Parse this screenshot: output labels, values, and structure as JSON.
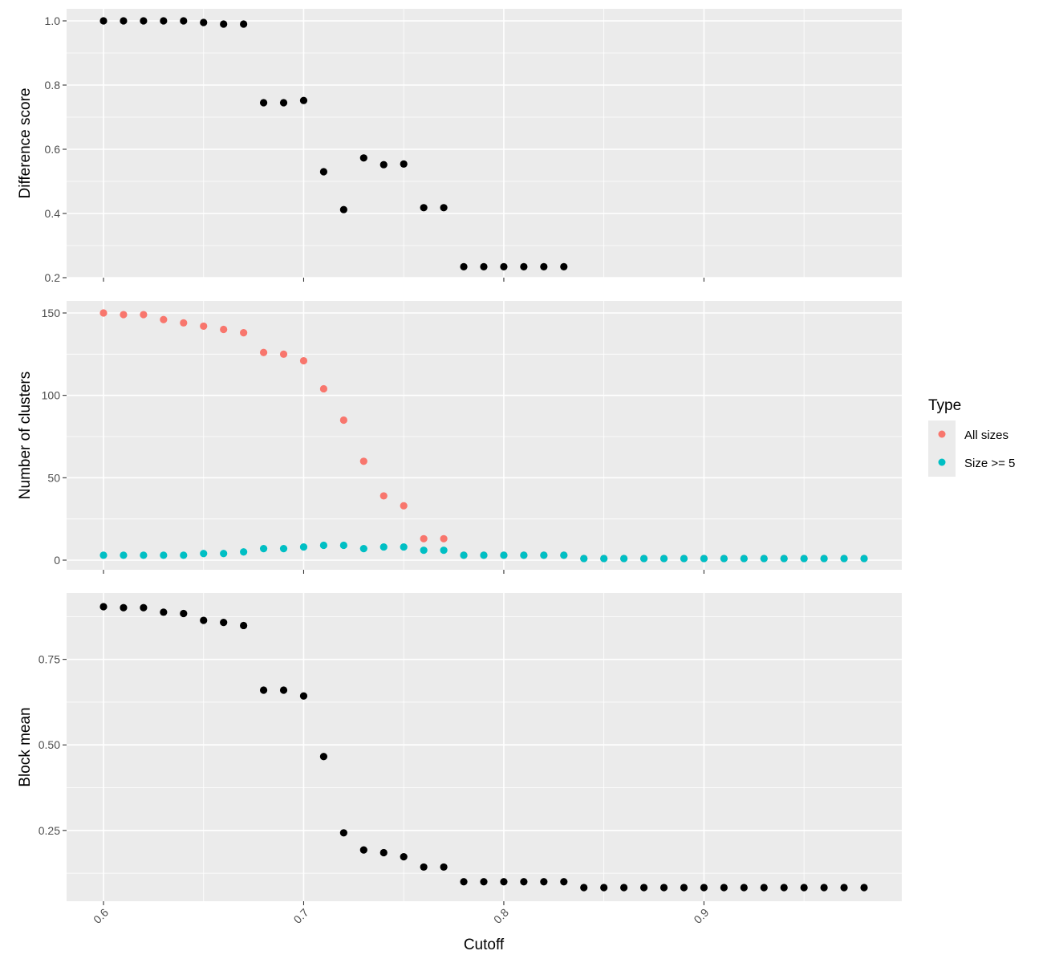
{
  "chart_data": [
    {
      "type": "scatter",
      "ylabel": "Difference score",
      "ylim": [
        0.2,
        1.0
      ],
      "yticks": [
        0.2,
        0.4,
        0.6,
        0.8,
        1.0
      ],
      "ytick_labels": [
        "0.2",
        "0.4",
        "0.6",
        "0.8",
        "1.0"
      ],
      "series": [
        {
          "color": "#000000",
          "x": [
            0.6,
            0.61,
            0.62,
            0.63,
            0.64,
            0.65,
            0.66,
            0.67,
            0.68,
            0.69,
            0.7,
            0.71,
            0.72,
            0.73,
            0.74,
            0.75,
            0.76,
            0.77,
            0.78,
            0.79,
            0.8,
            0.81,
            0.82,
            0.83
          ],
          "y": [
            1.0,
            1.0,
            1.0,
            1.0,
            1.0,
            0.995,
            0.99,
            0.99,
            0.745,
            0.745,
            0.752,
            0.53,
            0.412,
            0.573,
            0.552,
            0.554,
            0.418,
            0.418,
            0.234,
            0.234,
            0.234,
            0.234,
            0.234,
            0.234
          ]
        }
      ]
    },
    {
      "type": "scatter",
      "ylabel": "Number of clusters",
      "ylim": [
        0,
        150
      ],
      "yticks": [
        0,
        50,
        100,
        150
      ],
      "ytick_labels": [
        "0",
        "50",
        "100",
        "150"
      ],
      "legend": {
        "title": "Type",
        "position": "right"
      },
      "series": [
        {
          "name": "All sizes",
          "color": "#F8766D",
          "x": [
            0.6,
            0.61,
            0.62,
            0.63,
            0.64,
            0.65,
            0.66,
            0.67,
            0.68,
            0.69,
            0.7,
            0.71,
            0.72,
            0.73,
            0.74,
            0.75,
            0.76,
            0.77,
            0.78,
            0.79,
            0.8,
            0.81,
            0.82,
            0.83,
            0.84,
            0.85,
            0.86,
            0.87,
            0.88,
            0.89,
            0.9,
            0.91,
            0.92,
            0.93,
            0.94,
            0.95,
            0.96,
            0.97,
            0.98
          ],
          "y": [
            150,
            149,
            149,
            146,
            144,
            142,
            140,
            138,
            126,
            125,
            121,
            104,
            85,
            60,
            39,
            33,
            13,
            13,
            3,
            3,
            3,
            3,
            3,
            3,
            1,
            1,
            1,
            1,
            1,
            1,
            1,
            1,
            1,
            1,
            1,
            1,
            1,
            1,
            1
          ]
        },
        {
          "name": "Size >= 5",
          "color": "#00BFC4",
          "x": [
            0.6,
            0.61,
            0.62,
            0.63,
            0.64,
            0.65,
            0.66,
            0.67,
            0.68,
            0.69,
            0.7,
            0.71,
            0.72,
            0.73,
            0.74,
            0.75,
            0.76,
            0.77,
            0.78,
            0.79,
            0.8,
            0.81,
            0.82,
            0.83,
            0.84,
            0.85,
            0.86,
            0.87,
            0.88,
            0.89,
            0.9,
            0.91,
            0.92,
            0.93,
            0.94,
            0.95,
            0.96,
            0.97,
            0.98
          ],
          "y": [
            3,
            3,
            3,
            3,
            3,
            4,
            4,
            5,
            7,
            7,
            8,
            9,
            9,
            7,
            8,
            8,
            6,
            6,
            3,
            3,
            3,
            3,
            3,
            3,
            1,
            1,
            1,
            1,
            1,
            1,
            1,
            1,
            1,
            1,
            1,
            1,
            1,
            1,
            1
          ]
        }
      ]
    },
    {
      "type": "scatter",
      "ylabel": "Block mean",
      "xlabel": "Cutoff",
      "ylim": [
        0.083,
        0.904
      ],
      "yticks": [
        0.25,
        0.5,
        0.75
      ],
      "ytick_labels": [
        "0.25",
        "0.50",
        "0.75"
      ],
      "series": [
        {
          "color": "#000000",
          "x": [
            0.6,
            0.61,
            0.62,
            0.63,
            0.64,
            0.65,
            0.66,
            0.67,
            0.68,
            0.69,
            0.7,
            0.71,
            0.72,
            0.73,
            0.74,
            0.75,
            0.76,
            0.77,
            0.78,
            0.79,
            0.8,
            0.81,
            0.82,
            0.83,
            0.84,
            0.85,
            0.86,
            0.87,
            0.88,
            0.89,
            0.9,
            0.91,
            0.92,
            0.93,
            0.94,
            0.95,
            0.96,
            0.97,
            0.98
          ],
          "y": [
            0.904,
            0.901,
            0.901,
            0.888,
            0.884,
            0.864,
            0.858,
            0.849,
            0.66,
            0.66,
            0.643,
            0.466,
            0.243,
            0.193,
            0.185,
            0.173,
            0.143,
            0.143,
            0.1,
            0.1,
            0.1,
            0.1,
            0.1,
            0.1,
            0.083,
            0.083,
            0.083,
            0.083,
            0.083,
            0.083,
            0.083,
            0.083,
            0.083,
            0.083,
            0.083,
            0.083,
            0.083,
            0.083,
            0.083
          ]
        }
      ]
    }
  ],
  "x_axis": {
    "title": "Cutoff",
    "xlim": [
      0.6,
      0.98
    ],
    "ticks": [
      0.6,
      0.7,
      0.8,
      0.9
    ],
    "tick_labels": [
      "0.6",
      "0.7",
      "0.8",
      "0.9"
    ]
  },
  "style": {
    "panel_background": "#EBEBEB",
    "grid_color": "#FFFFFF",
    "grid": true
  }
}
